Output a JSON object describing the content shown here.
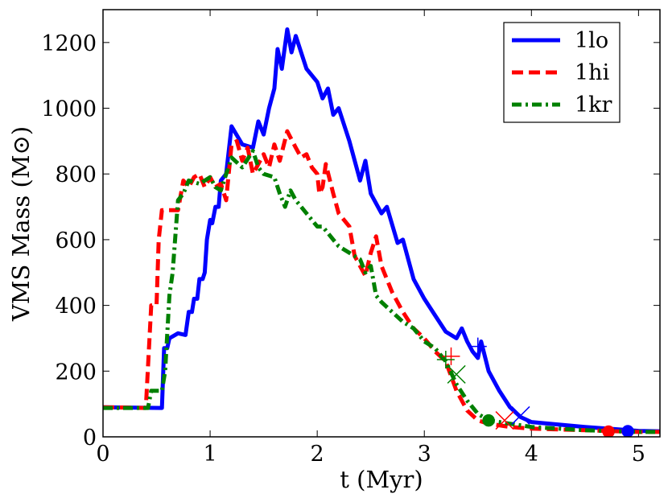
{
  "chart_data": {
    "type": "line",
    "xlabel": "t (Myr)",
    "ylabel": "VMS Mass (M⊙)",
    "xlim": [
      0,
      5.2
    ],
    "ylim": [
      0,
      1300
    ],
    "xticks": [
      0,
      1,
      2,
      3,
      4,
      5
    ],
    "yticks": [
      0,
      200,
      400,
      600,
      800,
      1000,
      1200
    ],
    "legend": "upper right",
    "series": [
      {
        "name": "1lo",
        "color": "#0000ff",
        "linestyle": "solid",
        "x": [
          0,
          0.55,
          0.57,
          0.6,
          0.62,
          0.7,
          0.77,
          0.8,
          0.83,
          0.85,
          0.88,
          0.9,
          0.93,
          0.95,
          0.97,
          1.0,
          1.02,
          1.05,
          1.08,
          1.1,
          1.15,
          1.2,
          1.3,
          1.4,
          1.45,
          1.5,
          1.55,
          1.6,
          1.63,
          1.67,
          1.72,
          1.76,
          1.8,
          1.9,
          2.0,
          2.05,
          2.1,
          2.15,
          2.2,
          2.3,
          2.4,
          2.45,
          2.5,
          2.6,
          2.65,
          2.75,
          2.8,
          2.9,
          3.0,
          3.1,
          3.2,
          3.3,
          3.35,
          3.4,
          3.45,
          3.5,
          3.53,
          3.6,
          3.7,
          3.8,
          3.9,
          4.0,
          4.5,
          5.0,
          5.2
        ],
        "values": [
          90,
          88,
          270,
          270,
          300,
          315,
          310,
          380,
          380,
          420,
          420,
          480,
          480,
          500,
          600,
          660,
          650,
          700,
          700,
          780,
          800,
          945,
          890,
          880,
          960,
          920,
          1000,
          1060,
          1180,
          1120,
          1240,
          1170,
          1220,
          1120,
          1080,
          1030,
          1060,
          980,
          1000,
          900,
          780,
          840,
          740,
          680,
          700,
          590,
          600,
          480,
          420,
          370,
          320,
          300,
          330,
          290,
          260,
          240,
          290,
          200,
          140,
          90,
          60,
          45,
          30,
          18,
          17
        ],
        "markers": [
          {
            "shape": "plus",
            "x": 3.5,
            "y": 275
          },
          {
            "shape": "cross",
            "x": 3.9,
            "y": 65
          },
          {
            "shape": "circle",
            "x": 4.9,
            "y": 17
          }
        ]
      },
      {
        "name": "1hi",
        "color": "#ff0000",
        "linestyle": "dashed",
        "x": [
          0,
          0.4,
          0.45,
          0.5,
          0.52,
          0.55,
          0.6,
          0.7,
          0.75,
          0.8,
          0.85,
          0.9,
          0.95,
          1.0,
          1.05,
          1.1,
          1.15,
          1.2,
          1.25,
          1.3,
          1.35,
          1.4,
          1.5,
          1.55,
          1.6,
          1.65,
          1.72,
          1.8,
          1.85,
          1.9,
          1.95,
          2.0,
          2.02,
          2.05,
          2.08,
          2.15,
          2.2,
          2.3,
          2.35,
          2.45,
          2.5,
          2.55,
          2.6,
          2.7,
          2.8,
          2.9,
          3.0,
          3.1,
          3.2,
          3.3,
          3.4,
          3.5,
          3.6,
          3.8,
          4.0,
          4.5,
          5.0,
          5.2
        ],
        "values": [
          90,
          88,
          400,
          400,
          600,
          690,
          690,
          690,
          780,
          760,
          790,
          800,
          760,
          790,
          760,
          770,
          720,
          890,
          900,
          840,
          880,
          800,
          860,
          820,
          890,
          840,
          930,
          880,
          850,
          860,
          820,
          800,
          740,
          760,
          830,
          740,
          680,
          640,
          550,
          490,
          560,
          610,
          520,
          440,
          380,
          330,
          300,
          260,
          230,
          140,
          80,
          50,
          40,
          30,
          25,
          20,
          15,
          15
        ],
        "markers": [
          {
            "shape": "plus",
            "x": 3.25,
            "y": 245
          },
          {
            "shape": "cross",
            "x": 3.75,
            "y": 50
          },
          {
            "shape": "circle",
            "x": 4.72,
            "y": 16
          }
        ]
      },
      {
        "name": "1kr",
        "color": "#008000",
        "linestyle": "dashdot",
        "x": [
          0,
          0.42,
          0.45,
          0.55,
          0.58,
          0.62,
          0.65,
          0.7,
          0.75,
          0.8,
          0.9,
          1.0,
          1.05,
          1.1,
          1.2,
          1.3,
          1.4,
          1.45,
          1.5,
          1.6,
          1.65,
          1.7,
          1.75,
          1.8,
          1.9,
          1.95,
          2.0,
          2.05,
          2.1,
          2.15,
          2.2,
          2.3,
          2.4,
          2.45,
          2.5,
          2.55,
          2.6,
          2.7,
          2.8,
          2.9,
          3.0,
          3.1,
          3.2,
          3.3,
          3.4,
          3.5,
          3.6,
          3.7,
          3.8,
          4.0,
          4.5,
          5.0,
          5.2
        ],
        "values": [
          88,
          88,
          140,
          140,
          200,
          430,
          500,
          720,
          740,
          780,
          770,
          790,
          760,
          750,
          850,
          820,
          870,
          820,
          800,
          790,
          740,
          700,
          750,
          720,
          680,
          660,
          640,
          640,
          620,
          600,
          580,
          560,
          540,
          500,
          520,
          430,
          410,
          380,
          350,
          330,
          290,
          270,
          230,
          160,
          110,
          70,
          50,
          45,
          40,
          30,
          20,
          15,
          15
        ],
        "markers": [
          {
            "shape": "plus",
            "x": 3.2,
            "y": 235
          },
          {
            "shape": "cross",
            "x": 3.3,
            "y": 190
          },
          {
            "shape": "circle",
            "x": 3.6,
            "y": 50
          }
        ]
      }
    ]
  }
}
